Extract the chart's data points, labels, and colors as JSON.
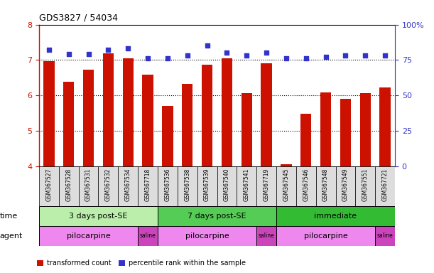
{
  "title": "GDS3827 / 54034",
  "samples": [
    "GSM367527",
    "GSM367528",
    "GSM367531",
    "GSM367532",
    "GSM367534",
    "GSM367718",
    "GSM367536",
    "GSM367538",
    "GSM367539",
    "GSM367540",
    "GSM367541",
    "GSM367719",
    "GSM367545",
    "GSM367546",
    "GSM367548",
    "GSM367549",
    "GSM367551",
    "GSM367721"
  ],
  "bar_values": [
    6.97,
    6.38,
    6.72,
    7.18,
    7.05,
    6.58,
    5.7,
    6.32,
    6.87,
    7.04,
    6.06,
    6.9,
    4.05,
    5.48,
    6.08,
    5.9,
    6.06,
    6.22
  ],
  "dot_values_pct": [
    82,
    79,
    79,
    82,
    83,
    76,
    76,
    78,
    85,
    80,
    78,
    80,
    76,
    76,
    77,
    78,
    78,
    78
  ],
  "ylim_left": [
    4,
    8
  ],
  "ylim_right": [
    0,
    100
  ],
  "yticks_left": [
    4,
    5,
    6,
    7,
    8
  ],
  "yticks_right": [
    0,
    25,
    50,
    75,
    100
  ],
  "bar_color": "#CC1100",
  "dot_color": "#3333CC",
  "time_groups": [
    {
      "label": "3 days post-SE",
      "start": 0,
      "end": 6,
      "color": "#BBEEAA"
    },
    {
      "label": "7 days post-SE",
      "start": 6,
      "end": 12,
      "color": "#55CC55"
    },
    {
      "label": "immediate",
      "start": 12,
      "end": 18,
      "color": "#33BB33"
    }
  ],
  "agent_groups": [
    {
      "label": "pilocarpine",
      "start": 0,
      "end": 5,
      "color": "#EE88EE"
    },
    {
      "label": "saline",
      "start": 5,
      "end": 6,
      "color": "#CC44BB"
    },
    {
      "label": "pilocarpine",
      "start": 6,
      "end": 11,
      "color": "#EE88EE"
    },
    {
      "label": "saline",
      "start": 11,
      "end": 12,
      "color": "#CC44BB"
    },
    {
      "label": "pilocarpine",
      "start": 12,
      "end": 17,
      "color": "#EE88EE"
    },
    {
      "label": "saline",
      "start": 17,
      "end": 18,
      "color": "#CC44BB"
    }
  ],
  "time_label": "time",
  "agent_label": "agent",
  "legend": [
    {
      "label": "transformed count",
      "color": "#CC1100"
    },
    {
      "label": "percentile rank within the sample",
      "color": "#3333CC"
    }
  ],
  "bar_width": 0.55,
  "label_color_left": "#CC1100",
  "label_color_right": "#3333CC"
}
